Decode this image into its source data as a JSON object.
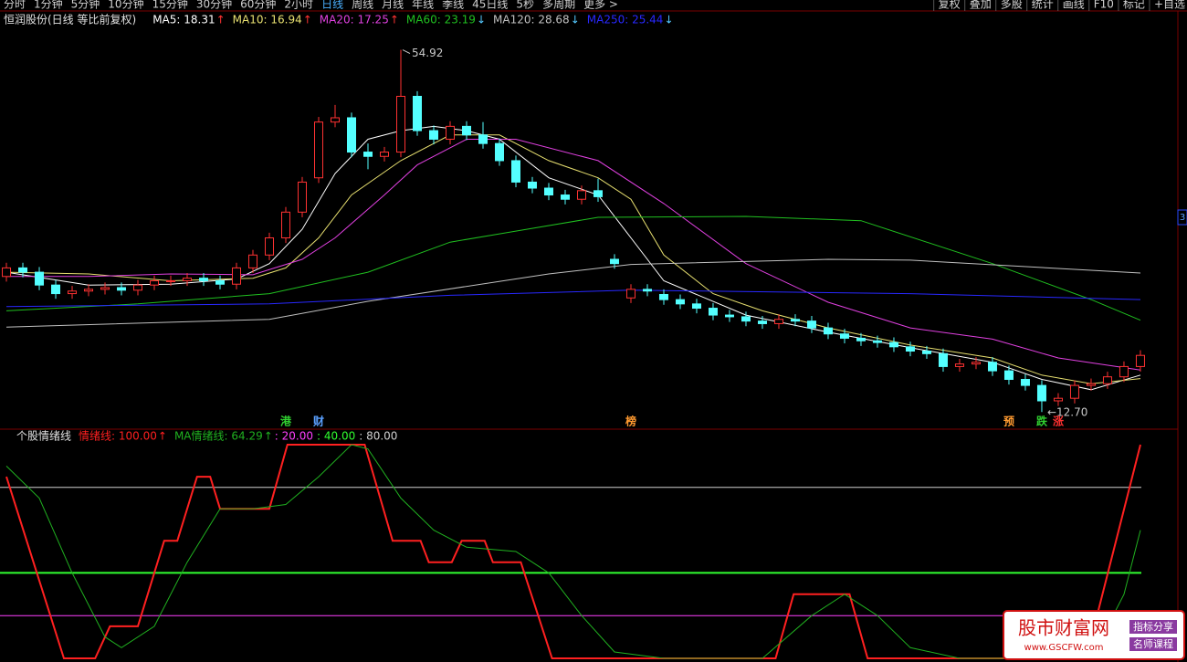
{
  "toolbar": {
    "periods": [
      "分时",
      "1分钟",
      "5分钟",
      "10分钟",
      "15分钟",
      "30分钟",
      "60分钟",
      "2小时",
      "日线",
      "周线",
      "月线",
      "年线",
      "季线",
      "45日线",
      "5秒",
      "多周期",
      "更多 >"
    ],
    "active": "日线",
    "tools": [
      "复权",
      "叠加",
      "多股",
      "统计",
      "画线",
      "F10",
      "标记",
      "+自选"
    ],
    "edge_label": "3"
  },
  "chart_data": [
    {
      "type": "candlestick",
      "title": "恒润股份(日线 等比前复权)",
      "ylim": [
        10.7,
        58.6
      ],
      "xlim": [
        -0.39,
        71.28
      ],
      "up_color": "#ff3232",
      "down_color": "#54ffff",
      "open": [
        28.5,
        29.5,
        29.0,
        27.5,
        26.5,
        26.8,
        27.0,
        27.2,
        26.9,
        27.5,
        28.0,
        28.0,
        28.3,
        28.0,
        27.6,
        29.5,
        31.0,
        33.0,
        36.0,
        40.0,
        46.5,
        47.0,
        43.0,
        42.5,
        43.0,
        49.5,
        45.5,
        44.5,
        46.0,
        45.0,
        44.0,
        42.0,
        39.5,
        38.8,
        38.0,
        37.5,
        38.5,
        30.5,
        26.0,
        27.0,
        26.4,
        25.8,
        25.3,
        24.8,
        24.0,
        23.8,
        23.3,
        23.0,
        23.5,
        23.3,
        22.5,
        21.8,
        21.3,
        21.0,
        20.8,
        20.3,
        19.8,
        19.5,
        18.0,
        18.3,
        18.5,
        17.5,
        16.5,
        15.8,
        14.0,
        14.3,
        15.8,
        16.0,
        16.8,
        18.0
      ],
      "high": [
        30.1,
        30.1,
        29.6,
        28.1,
        27.4,
        27.6,
        27.8,
        27.8,
        28.1,
        28.6,
        28.6,
        28.9,
        28.9,
        28.6,
        30.1,
        31.6,
        33.6,
        36.6,
        40.1,
        47.1,
        48.5,
        47.6,
        44.0,
        43.6,
        54.92,
        50.1,
        46.1,
        46.6,
        46.6,
        46.5,
        44.6,
        42.6,
        40.1,
        39.4,
        38.6,
        39.1,
        39.9,
        31.1,
        27.6,
        27.6,
        27.0,
        26.4,
        25.9,
        25.4,
        24.6,
        24.4,
        23.9,
        24.1,
        24.1,
        23.9,
        23.1,
        22.4,
        21.9,
        21.6,
        21.4,
        20.9,
        20.4,
        20.1,
        18.9,
        19.1,
        19.1,
        18.1,
        17.1,
        16.4,
        14.9,
        16.4,
        16.6,
        17.4,
        18.6,
        19.9
      ],
      "low": [
        27.9,
        28.4,
        26.9,
        25.9,
        25.9,
        26.2,
        26.4,
        26.3,
        26.3,
        26.9,
        27.4,
        27.4,
        27.4,
        27.0,
        27.0,
        28.9,
        30.4,
        32.4,
        35.4,
        39.4,
        45.9,
        42.4,
        41.0,
        41.9,
        42.4,
        44.9,
        43.9,
        43.9,
        44.4,
        43.4,
        41.4,
        38.9,
        38.2,
        37.4,
        36.9,
        36.9,
        37.2,
        29.4,
        25.4,
        26.2,
        25.2,
        24.7,
        24.2,
        23.4,
        23.2,
        22.7,
        22.4,
        22.4,
        22.7,
        21.9,
        21.2,
        20.7,
        20.4,
        20.2,
        19.7,
        19.2,
        18.9,
        17.4,
        17.4,
        17.7,
        16.9,
        15.9,
        15.2,
        12.7,
        13.4,
        13.7,
        15.2,
        15.4,
        16.2,
        17.4
      ],
      "close": [
        29.5,
        29.0,
        27.5,
        26.5,
        26.8,
        27.0,
        27.2,
        26.9,
        27.5,
        28.0,
        28.0,
        28.3,
        28.0,
        27.6,
        29.5,
        31.0,
        33.0,
        36.0,
        39.5,
        46.5,
        47.0,
        43.0,
        42.5,
        43.0,
        49.5,
        45.5,
        44.5,
        46.0,
        45.0,
        44.0,
        42.0,
        39.5,
        38.8,
        38.0,
        37.5,
        38.5,
        37.8,
        30.0,
        27.0,
        26.8,
        25.8,
        25.3,
        24.8,
        24.0,
        23.8,
        23.3,
        23.0,
        23.5,
        23.3,
        22.5,
        21.8,
        21.3,
        21.0,
        20.8,
        20.3,
        19.8,
        19.5,
        18.0,
        18.3,
        18.5,
        17.5,
        16.5,
        15.8,
        14.0,
        14.3,
        15.8,
        16.0,
        16.8,
        18.0,
        19.3
      ],
      "high_label": "54.92",
      "low_label": "←12.70",
      "series": [
        {
          "label": "MA5: 18.31",
          "arrow": "↑",
          "arrow_color": "#ff3232",
          "color": "#ffffff",
          "x": [
            0,
            5,
            10,
            14,
            16,
            18,
            20,
            22,
            24,
            26,
            28,
            30,
            33,
            36,
            38,
            40,
            45,
            50,
            55,
            60,
            63,
            66,
            69
          ],
          "values": [
            29,
            27.5,
            27.6,
            28.2,
            30,
            34,
            40.5,
            44.5,
            45.5,
            46,
            45.5,
            44.5,
            40,
            38,
            33,
            28,
            24,
            22,
            20.2,
            18.5,
            16.5,
            15.3,
            17
          ]
        },
        {
          "label": "MA10: 16.94",
          "arrow": "↑",
          "arrow_color": "#ff3232",
          "color": "#e8e070",
          "x": [
            0,
            5,
            10,
            15,
            17,
            19,
            21,
            24,
            27,
            30,
            33,
            36,
            38,
            40,
            43,
            46,
            50,
            55,
            60,
            63,
            66,
            69
          ],
          "values": [
            29,
            28.8,
            28,
            28.3,
            29.5,
            33,
            38,
            42,
            45,
            45,
            42,
            40,
            37.5,
            31,
            26.5,
            24.5,
            22.5,
            20.5,
            19,
            17,
            16,
            16.6
          ]
        },
        {
          "label": "MA20: 17.25",
          "arrow": "↑",
          "arrow_color": "#ff3232",
          "color": "#e040e0",
          "x": [
            0,
            5,
            10,
            15,
            18,
            20,
            23,
            25,
            28,
            31,
            36,
            40,
            45,
            50,
            55,
            60,
            64,
            69
          ],
          "values": [
            28.5,
            28.5,
            28.8,
            28.7,
            30.5,
            33,
            38,
            41.5,
            44.5,
            44.5,
            42,
            37,
            30,
            25.5,
            22.5,
            21.2,
            19,
            17.6
          ]
        },
        {
          "label": "MA60: 23.19",
          "arrow": "↓",
          "arrow_color": "#54c8ff",
          "color": "#20c020",
          "x": [
            0,
            8,
            16,
            22,
            27,
            36,
            45,
            52,
            60,
            66,
            69
          ],
          "values": [
            24.5,
            25.3,
            26.5,
            29,
            32.5,
            35.4,
            35.5,
            35,
            30,
            25.8,
            23.4
          ]
        },
        {
          "label": "MA120: 28.68",
          "arrow": "↓",
          "arrow_color": "#54c8ff",
          "color": "#c0c0c0",
          "x": [
            0,
            16,
            22,
            33,
            38,
            50,
            55,
            69
          ],
          "values": [
            22.6,
            23.5,
            25.6,
            28.8,
            29.9,
            30.5,
            30.4,
            28.9
          ]
        },
        {
          "label": "MA250: 25.44",
          "arrow": "↓",
          "arrow_color": "#54c8ff",
          "color": "#2828ff",
          "x": [
            0,
            16,
            27,
            38,
            55,
            69
          ],
          "values": [
            25,
            25.3,
            26.3,
            26.9,
            26.5,
            25.8
          ]
        }
      ],
      "events": [
        {
          "x": 17,
          "text": "港",
          "color": "#30d030"
        },
        {
          "x": 19,
          "text": "财",
          "color": "#5aa0ff"
        },
        {
          "x": 38,
          "text": "榜",
          "color": "#ff9a30"
        },
        {
          "x": 61,
          "text": "预",
          "color": "#ff9a30"
        },
        {
          "x": 63,
          "text": "跌",
          "color": "#30d030"
        },
        {
          "x": 64,
          "text": "涨",
          "color": "#ff3030"
        }
      ]
    },
    {
      "type": "line",
      "title": "个股情绪线",
      "ylim": [
        0,
        100
      ],
      "xlim": [
        -0.39,
        71.28
      ],
      "series": [
        {
          "label": "情绪线: 100.00",
          "arrow": "↑",
          "color": "#ff2020",
          "width": 2,
          "x": [
            0,
            3.5,
            5.4,
            6.3,
            8,
            9.6,
            10.4,
            11.6,
            12.4,
            13,
            16,
            17.1,
            21.8,
            23.5,
            25.2,
            25.7,
            27.1,
            27.7,
            29.1,
            29.6,
            31.3,
            33.2,
            46.8,
            47.9,
            51.3,
            52.4,
            65.7,
            69
          ],
          "values": [
            85,
            0,
            0,
            15,
            15,
            55,
            55,
            85,
            85,
            70,
            70,
            100,
            100,
            55,
            55,
            45,
            45,
            55,
            55,
            45,
            45,
            0,
            0,
            30,
            30,
            0,
            0,
            100
          ]
        },
        {
          "label": "MA情绪线: 64.29",
          "arrow": "↑",
          "color": "#20b020",
          "width": 1,
          "x": [
            0,
            2,
            4,
            6,
            7,
            9,
            11,
            13,
            15,
            17,
            19,
            21,
            22,
            24,
            26,
            28,
            31,
            33,
            35,
            37,
            40,
            46,
            49,
            51,
            53,
            55,
            58,
            66,
            68,
            69
          ],
          "values": [
            90,
            75,
            40,
            10,
            5,
            15,
            45,
            70,
            70,
            72,
            85,
            100,
            98,
            75,
            60,
            52,
            50,
            40,
            20,
            3,
            0,
            0,
            20,
            30,
            20,
            5,
            0,
            0,
            30,
            60
          ]
        }
      ],
      "levels": [
        {
          "value": 20,
          "label": ": 20.00",
          "color": "#ff40ff"
        },
        {
          "value": 40,
          "label": ": 40.00",
          "color": "#30ff30"
        },
        {
          "value": 80,
          "label": ": 80.00",
          "color": "#d0d0d0"
        }
      ]
    }
  ],
  "watermark": {
    "title": "股市财富网",
    "url": "www.GSCFW.com",
    "tags": [
      "指标分享",
      "名师课程"
    ]
  }
}
